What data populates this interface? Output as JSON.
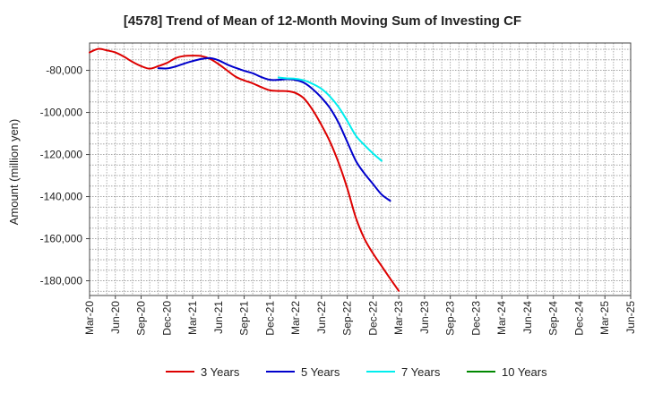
{
  "chart_data": {
    "type": "line",
    "title": "[4578]  Trend of Mean of 12-Month Moving Sum of Investing CF",
    "xlabel": "",
    "ylabel": "Amount (million yen)",
    "ylim": [
      -187000,
      -67000
    ],
    "yticks": [
      -80000,
      -100000,
      -120000,
      -140000,
      -160000,
      -180000
    ],
    "ytick_labels": [
      "-80,000",
      "-100,000",
      "-120,000",
      "-140,000",
      "-160,000",
      "-180,000"
    ],
    "categories": [
      "Mar-20",
      "Jun-20",
      "Sep-20",
      "Dec-20",
      "Mar-21",
      "Jun-21",
      "Sep-21",
      "Dec-21",
      "Mar-22",
      "Jun-22",
      "Sep-22",
      "Dec-22",
      "Mar-23",
      "Jun-23",
      "Sep-23",
      "Dec-23",
      "Mar-24",
      "Jun-24",
      "Sep-24",
      "Dec-24",
      "Mar-25",
      "Jun-25"
    ],
    "grid": true,
    "legend_position": "bottom",
    "series": [
      {
        "name": "3 Years",
        "color": "#dd0000",
        "points": [
          [
            0,
            -71500
          ],
          [
            1,
            -69800
          ],
          [
            2,
            -70500
          ],
          [
            3,
            -71500
          ],
          [
            4,
            -73500
          ],
          [
            5,
            -76000
          ],
          [
            6,
            -78000
          ],
          [
            7,
            -79200
          ],
          [
            8,
            -78000
          ],
          [
            9,
            -76500
          ],
          [
            10,
            -74200
          ],
          [
            11,
            -73200
          ],
          [
            12,
            -73000
          ],
          [
            13,
            -73200
          ],
          [
            14,
            -74500
          ],
          [
            15,
            -77000
          ],
          [
            16,
            -80000
          ],
          [
            17,
            -83000
          ],
          [
            18,
            -84800
          ],
          [
            19,
            -86200
          ],
          [
            20,
            -88000
          ],
          [
            21,
            -89500
          ],
          [
            22,
            -89800
          ],
          [
            23,
            -89900
          ],
          [
            24,
            -90800
          ],
          [
            25,
            -93500
          ],
          [
            26,
            -99000
          ],
          [
            27,
            -106000
          ],
          [
            28,
            -114000
          ],
          [
            29,
            -124000
          ],
          [
            30,
            -136000
          ],
          [
            31,
            -150000
          ],
          [
            32,
            -160000
          ],
          [
            33,
            -167000
          ],
          [
            34,
            -173000
          ],
          [
            35,
            -179000
          ],
          [
            36,
            -184800
          ]
        ]
      },
      {
        "name": "5 Years",
        "color": "#0000cc",
        "points": [
          [
            8,
            -79000
          ],
          [
            9,
            -79100
          ],
          [
            10,
            -78200
          ],
          [
            11,
            -76800
          ],
          [
            12,
            -75600
          ],
          [
            13,
            -74600
          ],
          [
            14,
            -74200
          ],
          [
            15,
            -75200
          ],
          [
            16,
            -77200
          ],
          [
            17,
            -78800
          ],
          [
            18,
            -80200
          ],
          [
            19,
            -81400
          ],
          [
            20,
            -83200
          ],
          [
            21,
            -84500
          ],
          [
            22,
            -84500
          ],
          [
            23,
            -84200
          ],
          [
            24,
            -84600
          ],
          [
            25,
            -86000
          ],
          [
            26,
            -89000
          ],
          [
            27,
            -93000
          ],
          [
            28,
            -98000
          ],
          [
            29,
            -105000
          ],
          [
            30,
            -114000
          ],
          [
            31,
            -123000
          ],
          [
            32,
            -129000
          ],
          [
            33,
            -134000
          ],
          [
            34,
            -139000
          ],
          [
            35,
            -142000
          ]
        ]
      },
      {
        "name": "7 Years",
        "color": "#00eeee",
        "points": [
          [
            22,
            -83400
          ],
          [
            23,
            -83800
          ],
          [
            24,
            -84000
          ],
          [
            25,
            -84800
          ],
          [
            26,
            -86500
          ],
          [
            27,
            -88800
          ],
          [
            28,
            -92500
          ],
          [
            29,
            -97500
          ],
          [
            30,
            -104000
          ],
          [
            31,
            -111000
          ],
          [
            32,
            -115500
          ],
          [
            33,
            -119500
          ],
          [
            34,
            -123000
          ]
        ]
      },
      {
        "name": "10 Years",
        "color": "#008800",
        "points": []
      }
    ]
  }
}
